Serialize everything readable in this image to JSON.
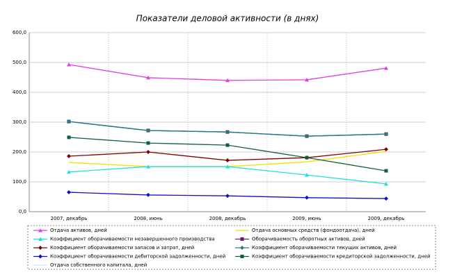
{
  "chart_data": {
    "type": "line",
    "title": "Показатели деловой активности (в днях)",
    "categories": [
      "2007, декабрь",
      "2008, июнь",
      "2008, декабрь",
      "2009, июнь",
      "2009, декабрь"
    ],
    "ylim": [
      0,
      600
    ],
    "yticks": [
      {
        "value": 0,
        "label": "0,0"
      },
      {
        "value": 100,
        "label": "100,0"
      },
      {
        "value": 200,
        "label": "200,0"
      },
      {
        "value": 300,
        "label": "300,0"
      },
      {
        "value": 400,
        "label": "400,0"
      },
      {
        "value": 500,
        "label": "500,0"
      },
      {
        "value": 600,
        "label": "600,0"
      }
    ],
    "grid": true,
    "series": [
      {
        "name": "Отдача активов, дней",
        "color": "#e040e0",
        "marker": "triangle",
        "values": [
          493,
          449,
          440,
          442,
          481
        ]
      },
      {
        "name": "Отдача основных средств (фондоотдача), дней",
        "color": "#f0e000",
        "marker": "none",
        "values": [
          165,
          151,
          151,
          167,
          202
        ]
      },
      {
        "name": "Коэффициент оборачиваемости незавершенного производства",
        "color": "#20e0e0",
        "marker": "triangle",
        "values": [
          133,
          151,
          151,
          123,
          93
        ]
      },
      {
        "name": "Оборачиваемость оборотных активов, дней",
        "color": "#6a1a6a",
        "marker": "square",
        "values": [
          302,
          272,
          267,
          253,
          260
        ]
      },
      {
        "name": "Коэффициент оборачиваемости запасов и затрат, дней",
        "color": "#800000",
        "marker": "diamond",
        "values": [
          186,
          200,
          172,
          181,
          209
        ]
      },
      {
        "name": "Коэффициент оборачиваемости текущих активов, дней",
        "color": "#208080",
        "marker": "diamond",
        "values": [
          302,
          272,
          267,
          253,
          260
        ]
      },
      {
        "name": "Коэффициент оборачиваемости дебиторской задолженности, дней",
        "color": "#1010c0",
        "marker": "diamond",
        "values": [
          65,
          56,
          53,
          47,
          44
        ]
      },
      {
        "name": "Коэффициент оборачиваемости кредиторской задолженности, дней",
        "color": "#106040",
        "marker": "square",
        "values": [
          249,
          230,
          223,
          181,
          137
        ]
      },
      {
        "name": "Отдача собственного капитала, дней",
        "color": "#c8e8ff",
        "marker": "none",
        "values": [
          null,
          null,
          null,
          null,
          null
        ]
      }
    ]
  }
}
